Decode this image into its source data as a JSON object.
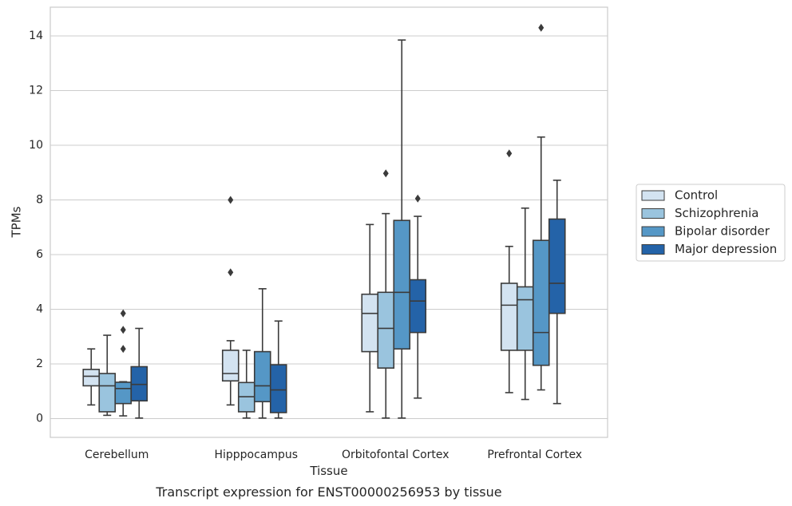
{
  "chart_data": {
    "type": "box",
    "title": "",
    "caption": "Transcript expression for ENST00000256953 by tissue",
    "xlabel": "Tissue",
    "ylabel": "TPMs",
    "ylim": [
      -0.7,
      15.1
    ],
    "yticks": [
      0,
      2,
      4,
      6,
      8,
      10,
      12,
      14
    ],
    "grid": "horizontal",
    "legend_position": "right",
    "categories": [
      "Cerebellum",
      "Hipppocampus",
      "Orbitofontal Cortex",
      "Prefrontal Cortex"
    ],
    "series": [
      {
        "name": "Control",
        "color": "#d3e3f1",
        "boxes": [
          {
            "whisker_low": 0.5,
            "q1": 1.2,
            "median": 1.55,
            "q3": 1.8,
            "whisker_high": 2.55,
            "outliers": []
          },
          {
            "whisker_low": 0.5,
            "q1": 1.38,
            "median": 1.65,
            "q3": 2.5,
            "whisker_high": 2.85,
            "outliers": [
              5.35,
              8.0
            ]
          },
          {
            "whisker_low": 0.25,
            "q1": 2.45,
            "median": 3.85,
            "q3": 4.55,
            "whisker_high": 7.1,
            "outliers": []
          },
          {
            "whisker_low": 0.95,
            "q1": 2.5,
            "median": 4.15,
            "q3": 4.95,
            "whisker_high": 6.3,
            "outliers": [
              9.7
            ]
          }
        ]
      },
      {
        "name": "Schizophrenia",
        "color": "#9ac4de",
        "boxes": [
          {
            "whisker_low": 0.12,
            "q1": 0.25,
            "median": 1.2,
            "q3": 1.65,
            "whisker_high": 3.05,
            "outliers": []
          },
          {
            "whisker_low": 0.02,
            "q1": 0.25,
            "median": 0.8,
            "q3": 1.32,
            "whisker_high": 2.5,
            "outliers": []
          },
          {
            "whisker_low": 0.02,
            "q1": 1.85,
            "median": 3.3,
            "q3": 4.62,
            "whisker_high": 7.5,
            "outliers": [
              8.97
            ]
          },
          {
            "whisker_low": 0.7,
            "q1": 2.5,
            "median": 4.35,
            "q3": 4.82,
            "whisker_high": 7.7,
            "outliers": []
          }
        ]
      },
      {
        "name": "Bipolar disorder",
        "color": "#5597c6",
        "boxes": [
          {
            "whisker_low": 0.1,
            "q1": 0.55,
            "median": 1.1,
            "q3": 1.33,
            "whisker_high": 1.35,
            "outliers": [
              2.55,
              3.25,
              3.85
            ]
          },
          {
            "whisker_low": 0.02,
            "q1": 0.62,
            "median": 1.2,
            "q3": 2.45,
            "whisker_high": 4.75,
            "outliers": []
          },
          {
            "whisker_low": 0.02,
            "q1": 2.55,
            "median": 4.62,
            "q3": 7.25,
            "whisker_high": 13.85,
            "outliers": []
          },
          {
            "whisker_low": 1.05,
            "q1": 1.95,
            "median": 3.15,
            "q3": 6.52,
            "whisker_high": 10.3,
            "outliers": [
              14.3
            ]
          }
        ]
      },
      {
        "name": "Major depression",
        "color": "#2463a8",
        "boxes": [
          {
            "whisker_low": 0.02,
            "q1": 0.65,
            "median": 1.25,
            "q3": 1.9,
            "whisker_high": 3.3,
            "outliers": []
          },
          {
            "whisker_low": 0.02,
            "q1": 0.22,
            "median": 1.05,
            "q3": 1.97,
            "whisker_high": 3.57,
            "outliers": []
          },
          {
            "whisker_low": 0.75,
            "q1": 3.15,
            "median": 4.3,
            "q3": 5.08,
            "whisker_high": 7.4,
            "outliers": [
              8.05
            ]
          },
          {
            "whisker_low": 0.55,
            "q1": 3.85,
            "median": 4.95,
            "q3": 7.3,
            "whisker_high": 8.72,
            "outliers": []
          }
        ]
      }
    ]
  }
}
